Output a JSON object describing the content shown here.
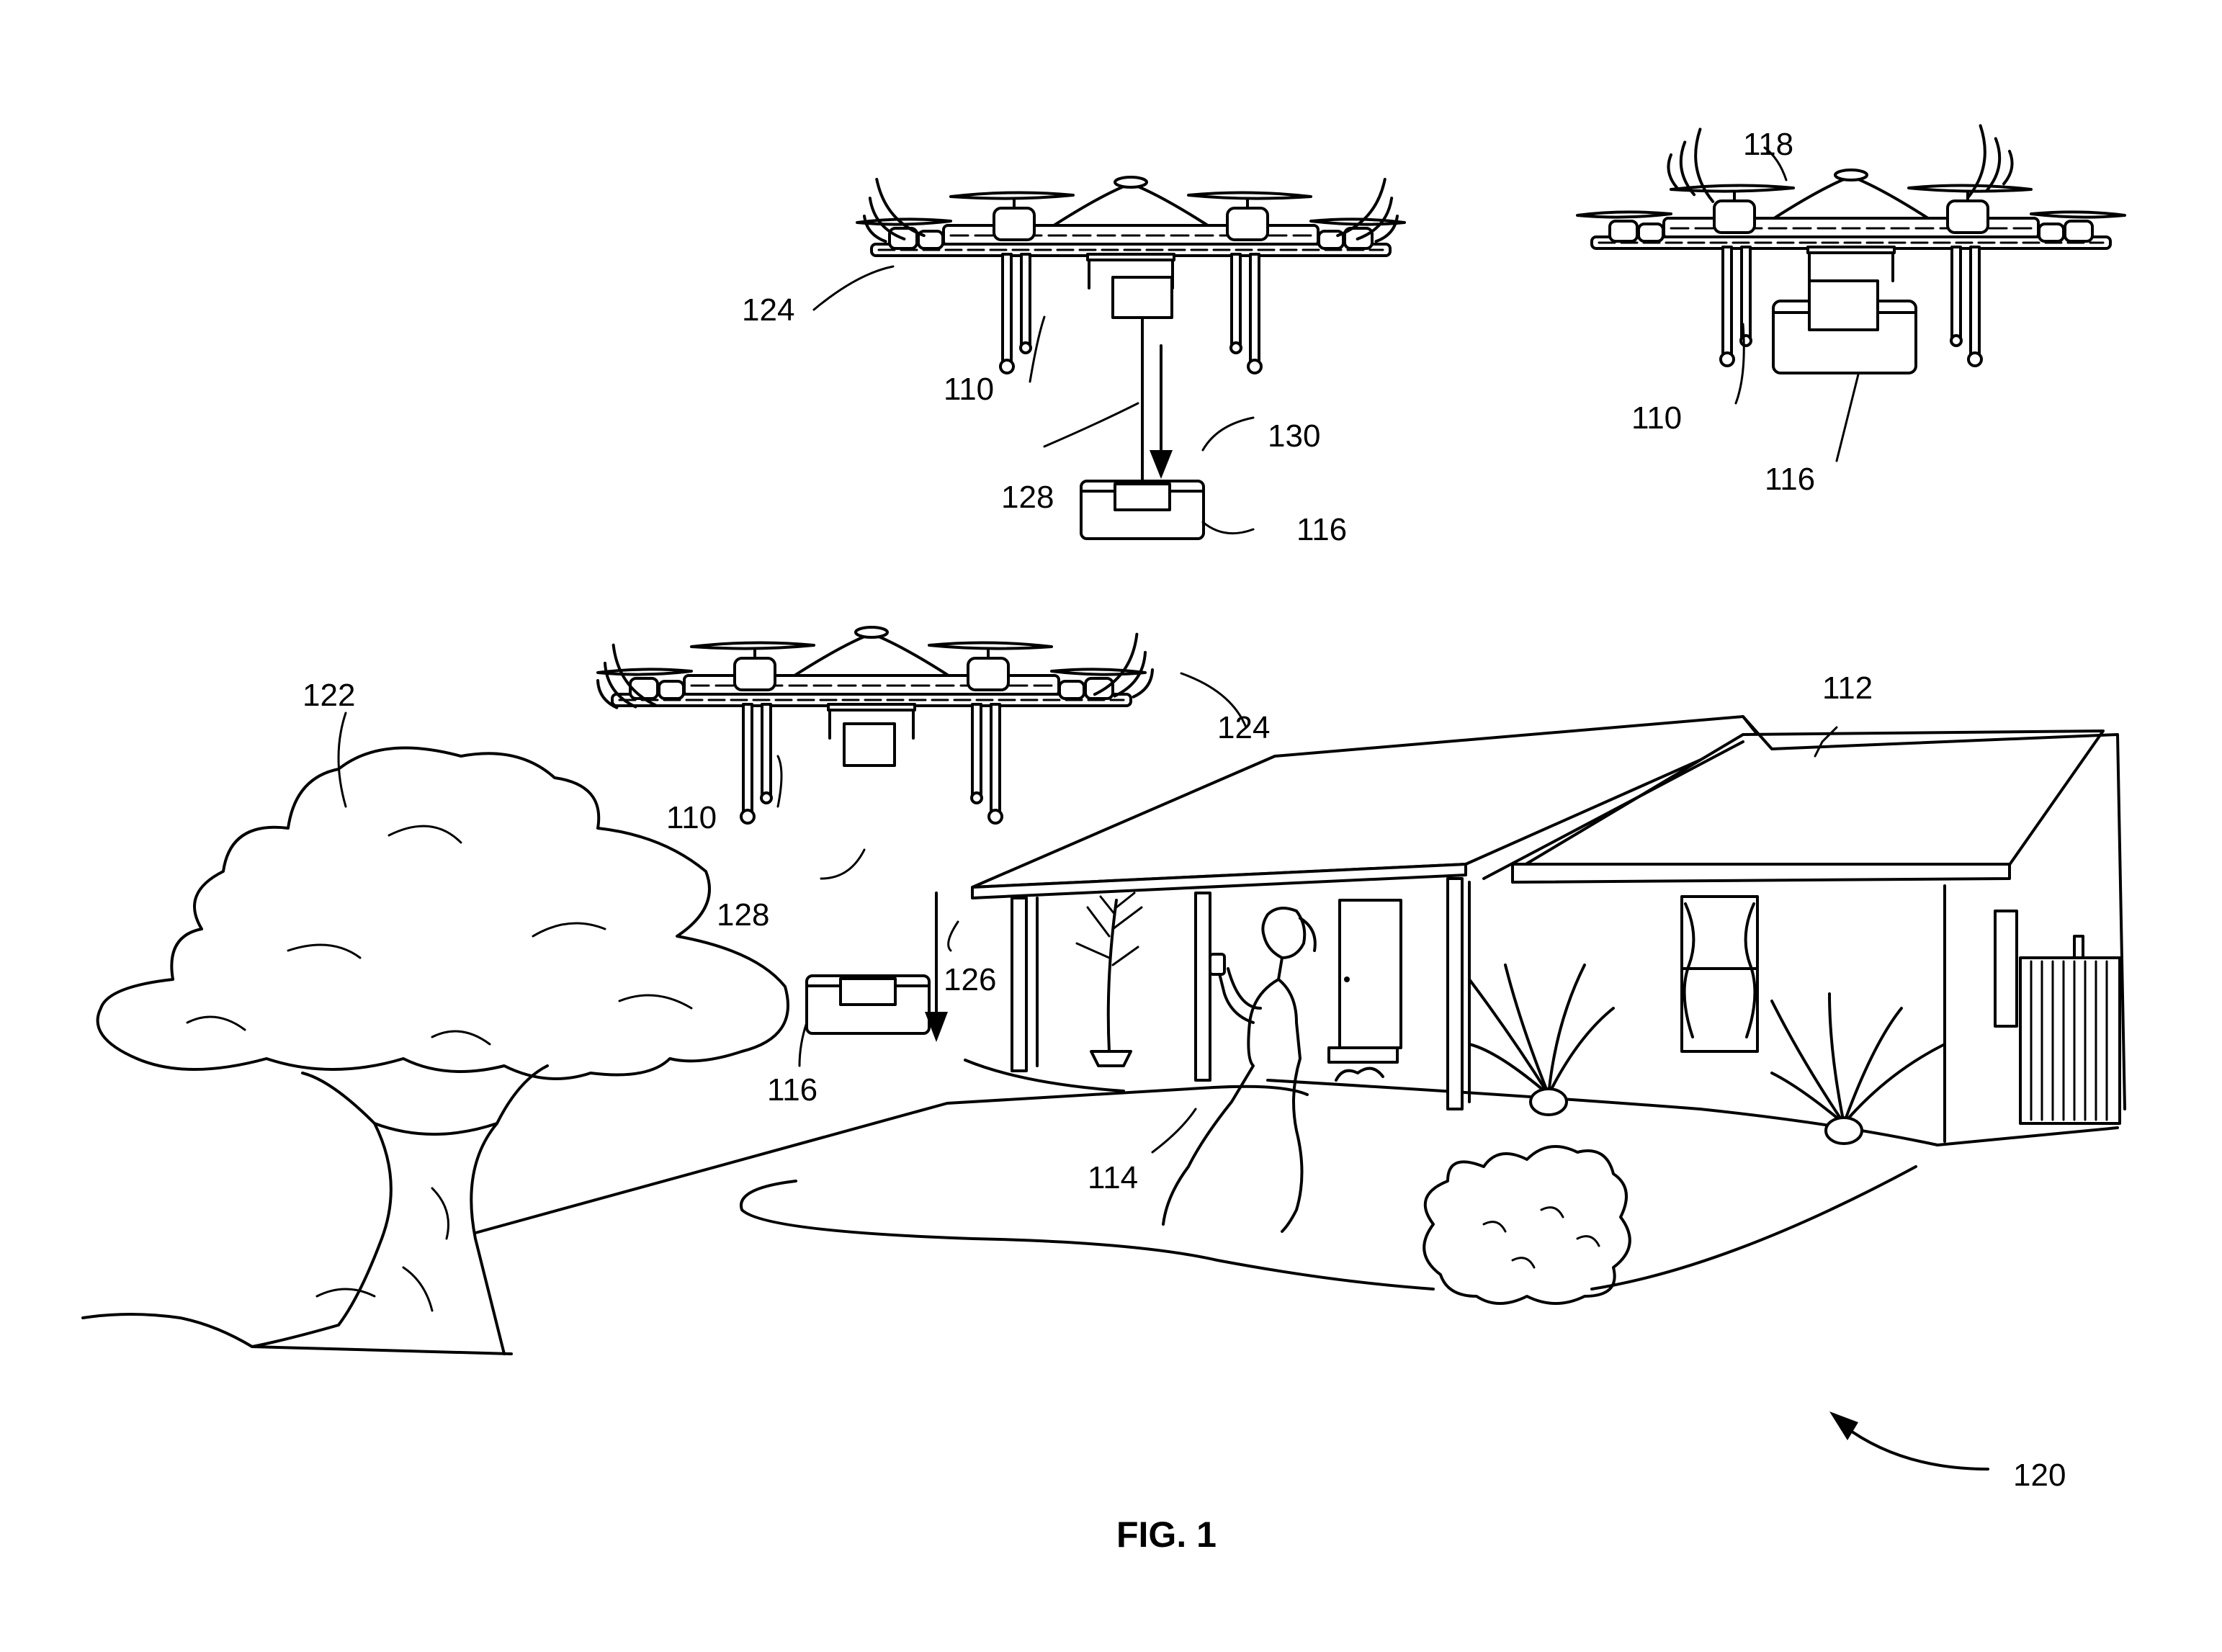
{
  "figure": {
    "caption": "FIG. 1",
    "refs": {
      "r110_a": "110",
      "r110_b": "110",
      "r110_c": "110",
      "r112": "112",
      "r114": "114",
      "r116_a": "116",
      "r116_b": "116",
      "r116_c": "116",
      "r118": "118",
      "r120": "120",
      "r122": "122",
      "r124_a": "124",
      "r124_b": "124",
      "r126": "126",
      "r128_a": "128",
      "r128_b": "128",
      "r130": "130"
    }
  }
}
